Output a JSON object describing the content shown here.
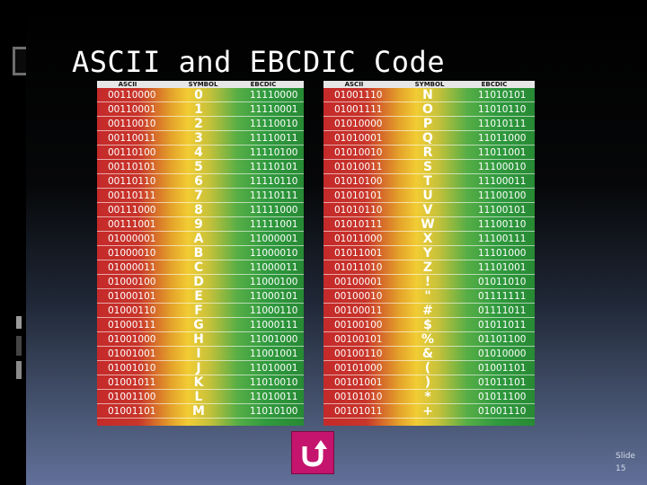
{
  "title": "ASCII and EBCDIC Code",
  "slide_number": "Slide 15",
  "colors": {
    "background": "#000000",
    "button": "#c4146e",
    "text": "#ffffff"
  },
  "icons": {
    "back": "u-turn-arrow-icon"
  },
  "headers": {
    "ascii": "ASCII",
    "symbol": "SYMBOL",
    "ebcdic": "EBCDIC"
  },
  "left_table": [
    {
      "ascii": "00110000",
      "symbol": "0",
      "ebcdic": "11110000"
    },
    {
      "ascii": "00110001",
      "symbol": "1",
      "ebcdic": "11110001"
    },
    {
      "ascii": "00110010",
      "symbol": "2",
      "ebcdic": "11110010"
    },
    {
      "ascii": "00110011",
      "symbol": "3",
      "ebcdic": "11110011"
    },
    {
      "ascii": "00110100",
      "symbol": "4",
      "ebcdic": "11110100"
    },
    {
      "ascii": "00110101",
      "symbol": "5",
      "ebcdic": "11110101"
    },
    {
      "ascii": "00110110",
      "symbol": "6",
      "ebcdic": "11110110"
    },
    {
      "ascii": "00110111",
      "symbol": "7",
      "ebcdic": "11110111"
    },
    {
      "ascii": "00111000",
      "symbol": "8",
      "ebcdic": "11111000"
    },
    {
      "ascii": "00111001",
      "symbol": "9",
      "ebcdic": "11111001"
    },
    {
      "ascii": "01000001",
      "symbol": "A",
      "ebcdic": "11000001"
    },
    {
      "ascii": "01000010",
      "symbol": "B",
      "ebcdic": "11000010"
    },
    {
      "ascii": "01000011",
      "symbol": "C",
      "ebcdic": "11000011"
    },
    {
      "ascii": "01000100",
      "symbol": "D",
      "ebcdic": "11000100"
    },
    {
      "ascii": "01000101",
      "symbol": "E",
      "ebcdic": "11000101"
    },
    {
      "ascii": "01000110",
      "symbol": "F",
      "ebcdic": "11000110"
    },
    {
      "ascii": "01000111",
      "symbol": "G",
      "ebcdic": "11000111"
    },
    {
      "ascii": "01001000",
      "symbol": "H",
      "ebcdic": "11001000"
    },
    {
      "ascii": "01001001",
      "symbol": "I",
      "ebcdic": "11001001"
    },
    {
      "ascii": "01001010",
      "symbol": "J",
      "ebcdic": "11010001"
    },
    {
      "ascii": "01001011",
      "symbol": "K",
      "ebcdic": "11010010"
    },
    {
      "ascii": "01001100",
      "symbol": "L",
      "ebcdic": "11010011"
    },
    {
      "ascii": "01001101",
      "symbol": "M",
      "ebcdic": "11010100"
    }
  ],
  "right_table": [
    {
      "ascii": "01001110",
      "symbol": "N",
      "ebcdic": "11010101"
    },
    {
      "ascii": "01001111",
      "symbol": "O",
      "ebcdic": "11010110"
    },
    {
      "ascii": "01010000",
      "symbol": "P",
      "ebcdic": "11010111"
    },
    {
      "ascii": "01010001",
      "symbol": "Q",
      "ebcdic": "11011000"
    },
    {
      "ascii": "01010010",
      "symbol": "R",
      "ebcdic": "11011001"
    },
    {
      "ascii": "01010011",
      "symbol": "S",
      "ebcdic": "11100010"
    },
    {
      "ascii": "01010100",
      "symbol": "T",
      "ebcdic": "11100011"
    },
    {
      "ascii": "01010101",
      "symbol": "U",
      "ebcdic": "11100100"
    },
    {
      "ascii": "01010110",
      "symbol": "V",
      "ebcdic": "11100101"
    },
    {
      "ascii": "01010111",
      "symbol": "W",
      "ebcdic": "11100110"
    },
    {
      "ascii": "01011000",
      "symbol": "X",
      "ebcdic": "11100111"
    },
    {
      "ascii": "01011001",
      "symbol": "Y",
      "ebcdic": "11101000"
    },
    {
      "ascii": "01011010",
      "symbol": "Z",
      "ebcdic": "11101001"
    },
    {
      "ascii": "00100001",
      "symbol": "!",
      "ebcdic": "01011010"
    },
    {
      "ascii": "00100010",
      "symbol": "\"",
      "ebcdic": "01111111"
    },
    {
      "ascii": "00100011",
      "symbol": "#",
      "ebcdic": "01111011"
    },
    {
      "ascii": "00100100",
      "symbol": "$",
      "ebcdic": "01011011"
    },
    {
      "ascii": "00100101",
      "symbol": "%",
      "ebcdic": "01101100"
    },
    {
      "ascii": "00100110",
      "symbol": "&",
      "ebcdic": "01010000"
    },
    {
      "ascii": "00101000",
      "symbol": "(",
      "ebcdic": "01001101"
    },
    {
      "ascii": "00101001",
      "symbol": ")",
      "ebcdic": "01011101"
    },
    {
      "ascii": "00101010",
      "symbol": "*",
      "ebcdic": "01011100"
    },
    {
      "ascii": "00101011",
      "symbol": "+",
      "ebcdic": "01001110"
    }
  ]
}
